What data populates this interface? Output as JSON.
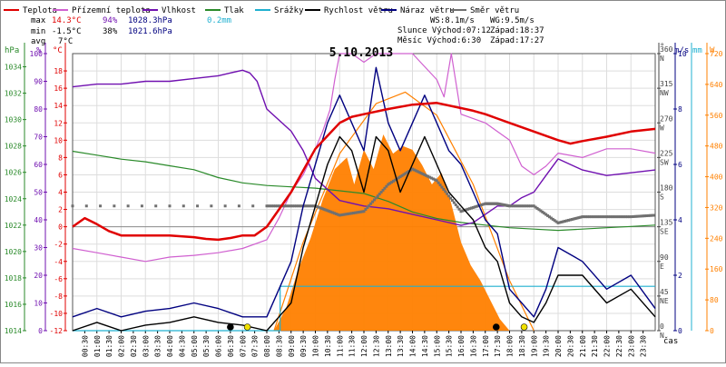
{
  "chart_data": {
    "type": "line",
    "title": "5.10.2013",
    "legend": [
      {
        "name": "Teplota",
        "color": "#e00000"
      },
      {
        "name": "Přízemní teplota",
        "color": "#d060d0"
      },
      {
        "name": "Vlhkost",
        "color": "#7010b0"
      },
      {
        "name": "Tlak",
        "color": "#2a8a2a"
      },
      {
        "name": "Srážky",
        "color": "#20b0d0"
      },
      {
        "name": "Rychlost větru",
        "color": "#000000"
      },
      {
        "name": "Náraz větru",
        "color": "#000080"
      },
      {
        "name": "Směr větru",
        "color": "#707070"
      }
    ],
    "stats": {
      "rows": [
        {
          "label": "max",
          "temp": "14.3°C",
          "hum": "94%",
          "press": "1028.3hPa",
          "rain": "0.2mm"
        },
        {
          "label": "min",
          "temp": "-1.5°C",
          "hum": "38%",
          "press": "1021.6hPa",
          "rain": ""
        },
        {
          "label": "avg",
          "temp": "7°C",
          "hum": "",
          "press": "",
          "rain": ""
        }
      ]
    },
    "info": {
      "ws": "WS:8.1m/s",
      "wg": "WG:9.5m/s",
      "sun": "Slunce Východ:07:12",
      "sun_set": "Západ:18:37",
      "moon": "Měsíc  Východ:6:30",
      "moon_set": "Západ:17:27"
    },
    "axis_units": {
      "hpa": "hPa",
      "pct": "%",
      "degc": "°C",
      "deg": "°",
      "ms": "m/s",
      "mm": "mm",
      "w": "W",
      "cas": "čas"
    },
    "y_pressure": {
      "ticks": [
        1014,
        1016,
        1018,
        1020,
        1022,
        1024,
        1026,
        1028,
        1030,
        1032,
        1034
      ],
      "range": [
        1014,
        1035
      ]
    },
    "y_humidity": {
      "ticks": [
        0,
        10,
        20,
        30,
        40,
        50,
        60,
        70,
        80,
        90,
        100
      ],
      "range": [
        0,
        100
      ]
    },
    "y_temperature": {
      "ticks": [
        -12,
        -10,
        -8,
        -6,
        -4,
        -2,
        0,
        2,
        4,
        6,
        8,
        10,
        12,
        14,
        16,
        18
      ],
      "range": [
        -12,
        20
      ]
    },
    "y_direction": {
      "ticks": [
        {
          "v": 0,
          "l": "0\nN"
        },
        {
          "v": 45,
          "l": "45\nNE"
        },
        {
          "v": 90,
          "l": "90\nE"
        },
        {
          "v": 135,
          "l": "135\nSE"
        },
        {
          "v": 180,
          "l": "180\nS"
        },
        {
          "v": 225,
          "l": "225\nSW"
        },
        {
          "v": 270,
          "l": "270\nW"
        },
        {
          "v": 315,
          "l": "315\nNW"
        },
        {
          "v": 360,
          "l": "360\nN"
        }
      ],
      "range": [
        0,
        360
      ]
    },
    "y_wind": {
      "ticks": [
        0,
        2,
        4,
        6,
        8,
        10
      ],
      "range": [
        0,
        10
      ]
    },
    "y_solar": {
      "ticks": [
        0,
        80,
        160,
        240,
        320,
        400,
        480,
        560,
        640,
        720
      ],
      "range": [
        0,
        720
      ]
    },
    "x_ticks": [
      "00:30",
      "01:00",
      "01:30",
      "02:00",
      "02:30",
      "03:00",
      "03:30",
      "04:00",
      "04:30",
      "05:00",
      "05:30",
      "06:00",
      "06:30",
      "07:00",
      "07:30",
      "08:00",
      "08:30",
      "09:00",
      "09:30",
      "10:00",
      "10:30",
      "11:00",
      "11:30",
      "12:00",
      "12:30",
      "13:00",
      "13:30",
      "14:00",
      "14:30",
      "15:00",
      "15:30",
      "16:00",
      "16:30",
      "17:00",
      "17:30",
      "18:00",
      "18:30",
      "19:00",
      "19:30",
      "20:00",
      "20:30",
      "21:00",
      "21:30",
      "22:00",
      "22:30",
      "23:00",
      "23:30"
    ],
    "x_range_hours": [
      0,
      24
    ],
    "series": [
      {
        "name": "Teplota",
        "color": "#e00000",
        "axis": "temperature",
        "x": [
          0,
          0.5,
          1,
          1.5,
          2,
          3,
          4,
          5,
          5.5,
          6,
          6.5,
          7,
          7.5,
          8,
          8.5,
          9,
          9.5,
          10,
          10.5,
          11,
          11.5,
          12,
          13,
          14,
          15,
          16,
          16.5,
          17,
          17.5,
          18,
          19,
          20,
          20.5,
          21,
          22,
          23,
          24
        ],
        "y": [
          0,
          1,
          0.3,
          -0.5,
          -1,
          -1,
          -1,
          -1.2,
          -1.4,
          -1.5,
          -1.3,
          -1,
          -1,
          0,
          2,
          4,
          6.5,
          9,
          10.5,
          12,
          12.7,
          13,
          13.6,
          14.1,
          14.3,
          13.7,
          13.4,
          13,
          12.5,
          12,
          11,
          10,
          9.6,
          9.9,
          10.4,
          11,
          11.3
        ]
      },
      {
        "name": "Přízemní teplota",
        "color": "#d060d0",
        "axis": "temperature",
        "x": [
          0,
          1,
          2,
          3,
          4,
          5,
          6,
          7,
          8,
          8.5,
          9,
          9.5,
          10,
          10.3,
          10.6,
          10.8,
          11,
          11.5,
          12,
          12.5,
          13,
          14,
          15,
          15.3,
          15.6,
          16,
          17,
          17.5,
          18,
          18.5,
          19,
          19.5,
          20,
          21,
          22,
          23,
          24
        ],
        "y": [
          -2.5,
          -3,
          -3.5,
          -4,
          -3.5,
          -3.3,
          -3,
          -2.5,
          -1.5,
          1,
          4,
          6,
          9,
          11,
          13.5,
          17,
          20,
          20,
          19,
          20,
          20,
          20,
          17,
          15,
          20,
          13,
          12,
          11,
          10,
          7,
          6,
          7,
          8.5,
          8,
          9,
          9,
          8.5
        ]
      },
      {
        "name": "Vlhkost",
        "color": "#7010b0",
        "axis": "humidity",
        "x": [
          0,
          1,
          2,
          3,
          4,
          5,
          6,
          6.5,
          7,
          7.3,
          7.6,
          8,
          9,
          9.5,
          10,
          11,
          12,
          13,
          14,
          15,
          16,
          16.5,
          17,
          17.5,
          18,
          18.5,
          19,
          19.5,
          20,
          21,
          22,
          23,
          24
        ],
        "y": [
          88,
          89,
          89,
          90,
          90,
          91,
          92,
          93,
          94,
          93,
          90,
          80,
          72,
          65,
          55,
          47,
          45,
          44,
          42,
          40,
          38,
          39,
          42,
          45,
          45,
          48,
          50,
          56,
          62,
          58,
          56,
          57,
          58
        ]
      },
      {
        "name": "Tlak",
        "color": "#2a8a2a",
        "axis": "pressure",
        "x": [
          0,
          1,
          2,
          3,
          4,
          5,
          6,
          7,
          8,
          9,
          10,
          11,
          12,
          13,
          14,
          15,
          16,
          17,
          18,
          19,
          20,
          21,
          22,
          23,
          24
        ],
        "y": [
          1027.6,
          1027.3,
          1027,
          1026.8,
          1026.5,
          1026.2,
          1025.6,
          1025.2,
          1025,
          1024.9,
          1024.8,
          1024.6,
          1024.4,
          1023.8,
          1023,
          1022.5,
          1022.2,
          1022,
          1021.8,
          1021.7,
          1021.6,
          1021.7,
          1021.8,
          1021.9,
          1022
        ]
      },
      {
        "name": "Srážky",
        "color": "#20b0d0",
        "axis": "solar_rain",
        "step": true,
        "x": [
          0,
          8.55,
          8.55,
          24
        ],
        "y": [
          0,
          0,
          0.2,
          0.2
        ]
      },
      {
        "name": "Rychlost větru",
        "color": "#000000",
        "axis": "wind",
        "x": [
          0,
          1,
          2,
          3,
          4,
          5,
          6,
          7,
          8,
          8.5,
          9,
          9.5,
          10,
          10.5,
          11,
          11.5,
          12,
          12.5,
          13,
          13.5,
          14,
          14.5,
          15,
          15.5,
          16,
          16.5,
          17,
          17.5,
          18,
          18.5,
          19,
          19.5,
          20,
          21,
          22,
          23,
          24
        ],
        "y": [
          0,
          0.3,
          0,
          0.2,
          0.3,
          0.5,
          0.3,
          0.2,
          0,
          0.5,
          1,
          3,
          4.5,
          6,
          7,
          6.5,
          5,
          7,
          6.5,
          5,
          6,
          7,
          6,
          5,
          4.5,
          4,
          3,
          2.5,
          1,
          0.5,
          0.3,
          1,
          2,
          2,
          1,
          1.5,
          0.5
        ]
      },
      {
        "name": "Náraz větru",
        "color": "#000080",
        "axis": "wind",
        "x": [
          0,
          1,
          2,
          3,
          4,
          5,
          6,
          7,
          8,
          8.5,
          9,
          9.5,
          10,
          10.5,
          11,
          11.5,
          12,
          12.5,
          13,
          13.5,
          14,
          14.5,
          15,
          15.5,
          16,
          16.5,
          17,
          17.5,
          18,
          18.5,
          19,
          19.5,
          20,
          21,
          22,
          23,
          24
        ],
        "y": [
          0.5,
          0.8,
          0.5,
          0.7,
          0.8,
          1,
          0.8,
          0.5,
          0.5,
          1.5,
          2.5,
          4.5,
          6,
          7.5,
          8.5,
          7.5,
          6.5,
          9.5,
          7.5,
          6.5,
          7.5,
          8.5,
          7.5,
          6.5,
          6,
          5,
          4,
          3.5,
          1.5,
          1,
          0.5,
          1.5,
          3,
          2.5,
          1.5,
          2,
          0.8
        ]
      },
      {
        "name": "Směr větru",
        "color": "#707070",
        "axis": "direction",
        "x": [
          0,
          8,
          9,
          10,
          11,
          12,
          13,
          14,
          15,
          16,
          17,
          17.5,
          18,
          19,
          20,
          21,
          22,
          23,
          24
        ],
        "y": [
          162,
          162,
          162,
          162,
          150,
          155,
          190,
          210,
          195,
          155,
          165,
          165,
          162,
          162,
          140,
          148,
          148,
          148,
          150
        ]
      },
      {
        "name": "Sluneční záření",
        "color": "#ff8000",
        "axis": "solar",
        "fill": true,
        "x": [
          0,
          8.3,
          8.8,
          9.3,
          9.8,
          10.3,
          10.8,
          11.3,
          11.6,
          12,
          12.4,
          12.8,
          13.2,
          13.6,
          14,
          14.4,
          14.8,
          15.2,
          15.6,
          16,
          16.4,
          16.8,
          17.2,
          17.6,
          18,
          24
        ],
        "y": [
          0,
          0,
          60,
          160,
          240,
          340,
          420,
          450,
          380,
          470,
          420,
          510,
          460,
          480,
          470,
          430,
          380,
          410,
          330,
          230,
          170,
          130,
          80,
          30,
          0,
          0
        ]
      },
      {
        "name": "Teoretické záření",
        "color": "#ff8000",
        "axis": "solar",
        "x": [
          8.3,
          9.5,
          11,
          12.5,
          13.7,
          15,
          16.5,
          18,
          19
        ],
        "y": [
          0,
          230,
          460,
          590,
          620,
          560,
          380,
          130,
          0
        ]
      }
    ],
    "markers": [
      {
        "x": 6.5,
        "color": "#000000",
        "name": "moonrise"
      },
      {
        "x": 7.2,
        "color": "#f0e000",
        "name": "sunrise"
      },
      {
        "x": 17.45,
        "color": "#000000",
        "name": "moonset"
      },
      {
        "x": 18.6,
        "color": "#f0e000",
        "name": "sunset"
      }
    ]
  }
}
